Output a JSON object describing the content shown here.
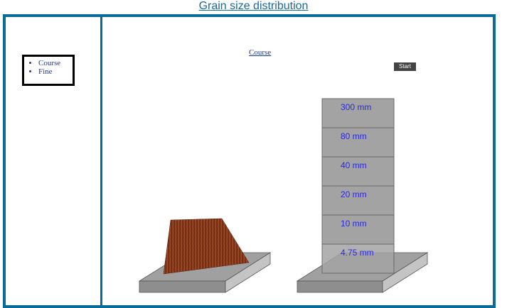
{
  "page": {
    "title": "Grain size distribution"
  },
  "menu": {
    "items": [
      {
        "label": "Course"
      },
      {
        "label": "Fine"
      }
    ]
  },
  "main": {
    "section_title": "Course",
    "start_label": "Start"
  },
  "sieves": [
    {
      "label": "300 mm"
    },
    {
      "label": "80 mm"
    },
    {
      "label": "40 mm"
    },
    {
      "label": "20 mm"
    },
    {
      "label": "10 mm"
    },
    {
      "label": "4.75 mm"
    }
  ],
  "colors": {
    "frame": "#0a6a98",
    "sieve": "#a3a3a3",
    "sieve_border": "#6a6a6a",
    "soil": "#8a3a1a",
    "base_top": "#a0a0a0",
    "base_front": "#8e8e8e",
    "base_side": "#c4c4c4"
  }
}
